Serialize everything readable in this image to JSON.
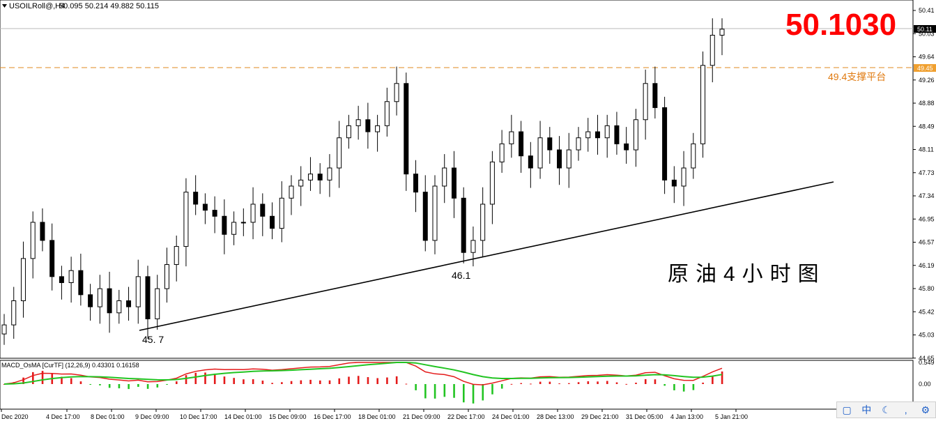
{
  "header": {
    "symbol": "USOILRoll@,H4",
    "ohlc": "50.095 50.214 49.882 50.115"
  },
  "price_display": "50.1030",
  "support_label": "49.4支撑平台",
  "chart_note": "原油4小时图",
  "markers": {
    "low1": "45. 7",
    "low2": "46.1"
  },
  "price_axis": {
    "ticks": [
      "50.41",
      "50.03",
      "49.64",
      "49.26",
      "48.88",
      "48.49",
      "48.11",
      "47.73",
      "47.34",
      "46.95",
      "46.57",
      "46.19",
      "45.80",
      "45.42",
      "45.03",
      "44.65"
    ],
    "current_tag": "50.11",
    "support_tag": "49.45"
  },
  "time_axis": {
    "labels": [
      "Dec 2020",
      "4 Dec 17:00",
      "8 Dec 01:00",
      "9 Dec 09:00",
      "10 Dec 17:00",
      "14 Dec 01:00",
      "15 Dec 09:00",
      "16 Dec 17:00",
      "18 Dec 01:00",
      "21 Dec 09:00",
      "22 Dec 17:00",
      "24 Dec 01:00",
      "28 Dec 13:00",
      "29 Dec 21:00",
      "31 Dec 05:00",
      "4 Jan 13:00",
      "5 Jan 21:00"
    ]
  },
  "macd": {
    "label": "MACD_OsMA [CurTF] (12,26,9) 0.43301 0.16158",
    "ticks": [
      "0.549",
      "0.00"
    ]
  },
  "colors": {
    "support_line": "#e08a1e",
    "current_line": "#b8b8b8",
    "histogram_positive": "#e41a1a",
    "histogram_negative": "#22c422",
    "macd_line": "#e41a1a",
    "signal_line": "#22c422",
    "price_big": "#ff0000"
  },
  "taskbar_icons": [
    "window-icon",
    "中",
    "moon-icon",
    "comma-icon",
    "gear-icon"
  ],
  "chart_data": {
    "type": "candlestick",
    "title": "USOILRoll@,H4",
    "ylim": [
      44.65,
      50.41
    ],
    "support_level": 49.45,
    "current_price": 50.115,
    "trendline": [
      {
        "from_low": 45.1
      },
      {
        "to": 47.55
      }
    ],
    "candles_close": [
      45.2,
      45.6,
      46.3,
      46.9,
      46.6,
      46.0,
      45.9,
      46.1,
      45.7,
      45.5,
      45.8,
      45.4,
      45.6,
      45.5,
      46.0,
      45.3,
      45.8,
      46.2,
      46.5,
      47.4,
      47.2,
      47.1,
      47.0,
      46.7,
      46.9,
      46.9,
      47.2,
      47.0,
      46.8,
      47.3,
      47.5,
      47.6,
      47.7,
      47.6,
      47.8,
      48.3,
      48.5,
      48.6,
      48.4,
      48.5,
      48.9,
      49.2,
      47.7,
      47.4,
      46.6,
      47.5,
      47.8,
      47.3,
      46.4,
      46.6,
      47.2,
      47.9,
      48.2,
      48.4,
      48.0,
      47.8,
      48.3,
      48.1,
      47.8,
      48.1,
      48.3,
      48.4,
      48.3,
      48.5,
      48.2,
      48.1,
      48.6,
      49.2,
      48.8,
      47.6,
      47.5,
      47.8,
      48.2,
      49.5,
      50.0,
      50.1
    ],
    "macd_histogram_note": "OsMA histogram with MACD and signal lines"
  }
}
